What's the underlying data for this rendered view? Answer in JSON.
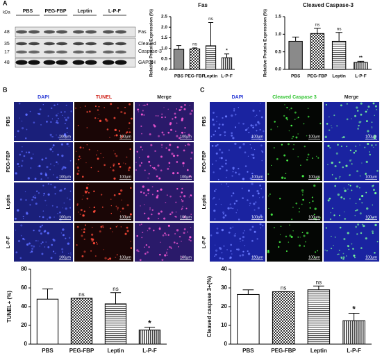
{
  "panels": {
    "a": "A",
    "b": "B",
    "c": "C"
  },
  "blot": {
    "unit": "kDa",
    "markers": [
      "48",
      "35",
      "17",
      "48"
    ],
    "lanes": [
      "PBS",
      "PEG-FBP",
      "Leptin",
      "L-P-F"
    ],
    "bands": [
      "Fas",
      "Cleaved",
      "Caspase-3",
      "GAPDH"
    ]
  },
  "panel_b": {
    "columns": [
      "DAPI",
      "TUNEL",
      "Merge"
    ],
    "column_colors": [
      "#2b3bd6",
      "#d0241c",
      "#222222"
    ],
    "rows": [
      "PBS",
      "PEG-FBP",
      "Leptin",
      "L-P-F"
    ],
    "scale": "100μm"
  },
  "panel_c": {
    "columns": [
      "DAPI",
      "Cleaved Caspase 3",
      "Merge"
    ],
    "column_colors": [
      "#2b3bd6",
      "#2fc42f",
      "#222222"
    ],
    "rows": [
      "PBS",
      "PEG-FBP",
      "Leptin",
      "L-P-F"
    ],
    "scale": "100μm"
  },
  "chart_data": [
    {
      "type": "bar",
      "title": "Fas",
      "y_label": "Relative Protein Expression (%)",
      "categories": [
        "PBS",
        "PEG-FBP",
        "Leptin",
        "L-P-F"
      ],
      "values": [
        0.95,
        0.97,
        1.12,
        0.55
      ],
      "errors": [
        0.18,
        0.05,
        1.1,
        0.18
      ],
      "annotations": [
        null,
        "ns",
        "ns",
        "*"
      ],
      "patterns": [
        "solid",
        "checker",
        "hlines",
        "vlines"
      ],
      "color": "#8a8a8a",
      "ylim": [
        0,
        2.5
      ],
      "yticks": [
        {
          "value": 0,
          "label": "0.0"
        },
        {
          "value": 0.5,
          "label": "0.5"
        },
        {
          "value": 1,
          "label": "1.0"
        },
        {
          "value": 1.5,
          "label": "1.5"
        },
        {
          "value": 2,
          "label": "2.0"
        },
        {
          "value": 2.5,
          "label": "2.5"
        }
      ]
    },
    {
      "type": "bar",
      "title": "Cleaved Caspase-3",
      "y_label": "Relative Protein Expression (%)",
      "categories": [
        "PBS",
        "PEG-FBP",
        "Leptin",
        "L-P-F"
      ],
      "values": [
        0.8,
        1.02,
        0.8,
        0.2
      ],
      "errors": [
        0.12,
        0.15,
        0.25,
        0.03
      ],
      "annotations": [
        null,
        "ns",
        "ns",
        "**"
      ],
      "patterns": [
        "solid",
        "checker",
        "hlines",
        "vlines"
      ],
      "color": "#8a8a8a",
      "ylim": [
        0,
        1.5
      ],
      "yticks": [
        {
          "value": 0,
          "label": "0.0"
        },
        {
          "value": 0.5,
          "label": "0.5"
        },
        {
          "value": 1,
          "label": "1.0"
        },
        {
          "value": 1.5,
          "label": "1.5"
        }
      ]
    },
    {
      "type": "bar",
      "y_label": "TUNEL+ (%)",
      "categories": [
        "PBS",
        "PEG-FBP",
        "Leptin",
        "L-P-F"
      ],
      "values": [
        48,
        49,
        43,
        15
      ],
      "errors": [
        11,
        0,
        12,
        3
      ],
      "annotations": [
        null,
        "ns",
        "ns",
        "*"
      ],
      "patterns": [
        "none",
        "checker",
        "hlines",
        "vlines"
      ],
      "color": "#ffffff",
      "ylim": [
        0,
        80
      ],
      "yticks": [
        0,
        20,
        40,
        60,
        80
      ]
    },
    {
      "type": "bar",
      "y_label": "Cleaved caspase 3+(%)",
      "categories": [
        "PBS",
        "PEG-FBP",
        "Leptin",
        "L-P-F"
      ],
      "values": [
        26.5,
        28,
        29,
        12.5
      ],
      "errors": [
        2.5,
        0,
        2,
        4
      ],
      "annotations": [
        null,
        "ns",
        "ns",
        "*"
      ],
      "patterns": [
        "none",
        "checker",
        "hlines",
        "vlines"
      ],
      "color": "#ffffff",
      "ylim": [
        0,
        40
      ],
      "yticks": [
        0,
        10,
        20,
        30,
        40
      ]
    }
  ]
}
